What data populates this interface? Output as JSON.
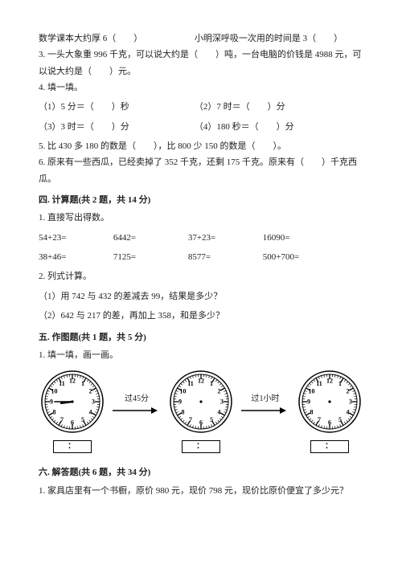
{
  "q_top_left": "数学课本大约厚 6（　　）",
  "q_top_right": "小明深呼吸一次用的时间是 3（　　）",
  "q3": "3. 一头大象重 996 千克，可以说大约是（　　）吨，一台电脑的价钱是 4988 元，可以说大约是（　　）元。",
  "q4_title": "4. 填一填。",
  "q4_items": {
    "a": "（1）5 分＝（　　）秒",
    "b": "（2）7 时＝（　　）分",
    "c": "（3）3 时＝（　　）分",
    "d": "（4）180 秒＝（　　）分"
  },
  "q5": "5. 比 430 多 180 的数是（　　），比 800 少 150 的数是（　　）。",
  "q6": "6. 原来有一些西瓜，已经卖掉了 352 千克，还剩 175 千克。原来有（　　）千克西瓜。",
  "section4_title": "四. 计算题(共 2 题，共 14 分)",
  "calc1_title": "1. 直接写出得数。",
  "calc_row1": {
    "a": "54+23=",
    "b": "6442=",
    "c": "37+23=",
    "d": "16090="
  },
  "calc_row2": {
    "a": "38+46=",
    "b": "7125=",
    "c": "8577=",
    "d": "500+700="
  },
  "calc2_title": "2. 列式计算。",
  "calc2_q1": "（1）用 742 与 432 的差减去 99，结果是多少？",
  "calc2_q2": "（2）642 与 217 的差，再加上 358，和是多少？",
  "section5_title": "五. 作图题(共 1 题，共 5 分)",
  "draw1_title": "1. 填一填，画一画。",
  "arrow1_label": "过45分",
  "arrow2_label": "过1小时",
  "timebox_text": "：",
  "section6_title": "六. 解答题(共 6 题，共 34 分)",
  "solve1": "1. 家具店里有一个书橱，原价 980 元，现价 798 元，现价比原价便宜了多少元？",
  "clock": {
    "radius_outer": 38,
    "radius_inner": 34,
    "tick_len": 4,
    "num_radius": 26,
    "hour_len": 14,
    "min_len": 22,
    "stroke": "#000",
    "start": {
      "hour": 8,
      "min": 45
    },
    "blank_dot_radius": 1.6
  },
  "arrow": {
    "width": 60,
    "height": 12,
    "stroke": "#000"
  }
}
